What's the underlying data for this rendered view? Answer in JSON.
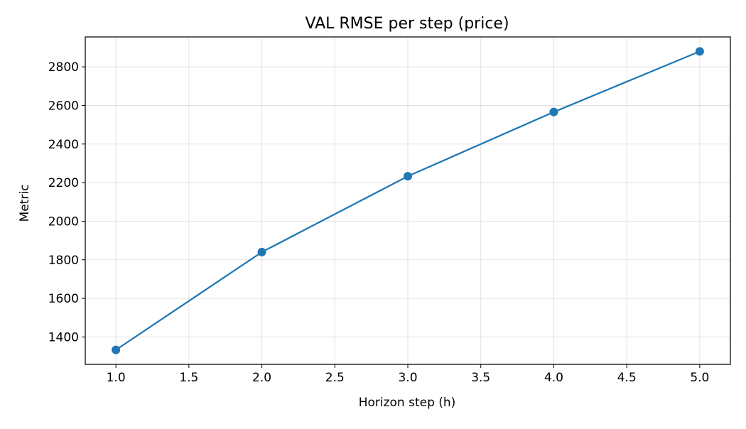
{
  "chart_data": {
    "type": "line",
    "title": "VAL RMSE per step (price)",
    "xlabel": "Horizon step (h)",
    "ylabel": "Metric",
    "x": [
      1.0,
      2.0,
      3.0,
      4.0,
      5.0
    ],
    "series": [
      {
        "values": [
          1333,
          1840,
          2233,
          2566,
          2880
        ],
        "color": "#1f77b4",
        "marker": "circle"
      }
    ],
    "xlim": [
      0.79,
      5.21
    ],
    "ylim": [
      1258,
      2955
    ],
    "xticks": [
      1.0,
      1.5,
      2.0,
      2.5,
      3.0,
      3.5,
      4.0,
      4.5,
      5.0
    ],
    "xtick_labels": [
      "1.0",
      "1.5",
      "2.0",
      "2.5",
      "3.0",
      "3.5",
      "4.0",
      "4.5",
      "5.0"
    ],
    "yticks": [
      1400,
      1600,
      1800,
      2000,
      2200,
      2400,
      2600,
      2800
    ],
    "ytick_labels": [
      "1400",
      "1600",
      "1800",
      "2000",
      "2200",
      "2400",
      "2600",
      "2800"
    ],
    "grid": true,
    "legend": false
  }
}
